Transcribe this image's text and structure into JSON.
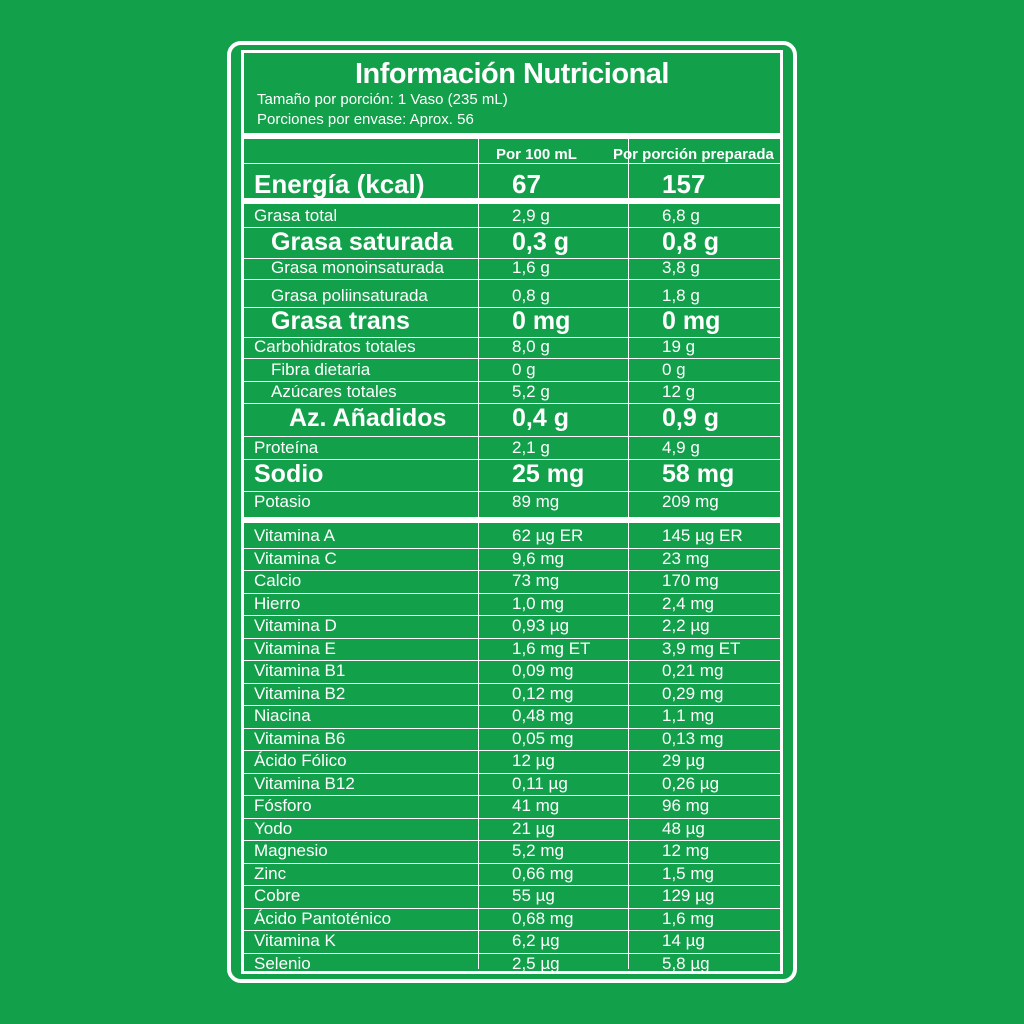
{
  "label": {
    "title": "Información Nutricional",
    "serving_size": "Tamaño por porción: 1 Vaso (235 mL)",
    "servings_per_container": "Porciones por envase: Aprox. 56",
    "col_per100": "Por 100 mL",
    "col_per_serving": "Por porción preparada"
  },
  "energy": {
    "name": "Energía (kcal)",
    "per100": "67",
    "serving": "157"
  },
  "nutrients": [
    {
      "name": "Grasa total",
      "per100": "2,9 g",
      "serving": "6,8 g",
      "indent": 0,
      "bold": false
    },
    {
      "name": "Grasa saturada",
      "per100": "0,3 g",
      "serving": "0,8 g",
      "indent": 1,
      "bold": true
    },
    {
      "name": "Grasa monoinsaturada",
      "per100": "1,6 g",
      "serving": "3,8 g",
      "indent": 1,
      "bold": false
    },
    {
      "name": "Grasa poliinsaturada",
      "per100": "0,8 g",
      "serving": "1,8 g",
      "indent": 1,
      "bold": false
    },
    {
      "name": "Grasa trans",
      "per100": "0 mg",
      "serving": "0 mg",
      "indent": 1,
      "bold": true
    },
    {
      "name": "Carbohidratos totales",
      "per100": "8,0 g",
      "serving": "19 g",
      "indent": 0,
      "bold": false
    },
    {
      "name": "Fibra dietaria",
      "per100": "0 g",
      "serving": "0 g",
      "indent": 1,
      "bold": false
    },
    {
      "name": "Azúcares totales",
      "per100": "5,2 g",
      "serving": "12 g",
      "indent": 1,
      "bold": false
    },
    {
      "name": "Az. Añadidos",
      "per100": "0,4 g",
      "serving": "0,9 g",
      "indent": 2,
      "bold": true
    },
    {
      "name": "Proteína",
      "per100": "2,1 g",
      "serving": "4,9 g",
      "indent": 0,
      "bold": false
    },
    {
      "name": "Sodio",
      "per100": "25 mg",
      "serving": "58 mg",
      "indent": 0,
      "bold": true
    },
    {
      "name": "Potasio",
      "per100": "89 mg",
      "serving": "209 mg",
      "indent": 0,
      "bold": false
    }
  ],
  "micronutrients": [
    {
      "name": "Vitamina A",
      "per100": "62 µg ER",
      "serving": "145 µg ER"
    },
    {
      "name": "Vitamina C",
      "per100": "9,6 mg",
      "serving": "23 mg"
    },
    {
      "name": "Calcio",
      "per100": "73 mg",
      "serving": "170 mg"
    },
    {
      "name": "Hierro",
      "per100": "1,0 mg",
      "serving": "2,4 mg"
    },
    {
      "name": "Vitamina D",
      "per100": "0,93 µg",
      "serving": "2,2 µg"
    },
    {
      "name": "Vitamina E",
      "per100": "1,6 mg ET",
      "serving": "3,9 mg ET"
    },
    {
      "name": "Vitamina B1",
      "per100": "0,09 mg",
      "serving": "0,21 mg"
    },
    {
      "name": "Vitamina B2",
      "per100": "0,12 mg",
      "serving": "0,29 mg"
    },
    {
      "name": "Niacina",
      "per100": "0,48 mg",
      "serving": "1,1 mg"
    },
    {
      "name": "Vitamina B6",
      "per100": "0,05 mg",
      "serving": "0,13 mg"
    },
    {
      "name": "Ácido Fólico",
      "per100": "12 µg",
      "serving": "29 µg"
    },
    {
      "name": "Vitamina B12",
      "per100": "0,11 µg",
      "serving": "0,26 µg"
    },
    {
      "name": "Fósforo",
      "per100": "41 mg",
      "serving": "96 mg"
    },
    {
      "name": "Yodo",
      "per100": "21 µg",
      "serving": "48 µg"
    },
    {
      "name": "Magnesio",
      "per100": "5,2 mg",
      "serving": "12 mg"
    },
    {
      "name": "Zinc",
      "per100": "0,66 mg",
      "serving": "1,5 mg"
    },
    {
      "name": "Cobre",
      "per100": "55 µg",
      "serving": "129 µg"
    },
    {
      "name": "Ácido Pantoténico",
      "per100": "0,68 mg",
      "serving": "1,6 mg"
    },
    {
      "name": "Vitamina K",
      "per100": "6,2 µg",
      "serving": "14 µg"
    },
    {
      "name": "Selenio",
      "per100": "2,5 µg",
      "serving": "5,8 µg"
    }
  ],
  "colors": {
    "background": "#12a04a",
    "text": "#ffffff"
  }
}
